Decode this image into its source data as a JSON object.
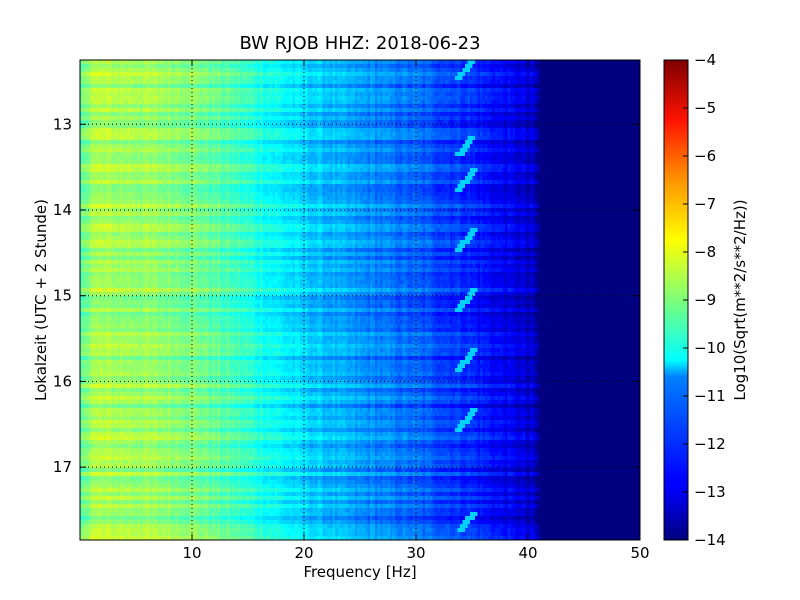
{
  "chart_data": {
    "type": "heatmap",
    "title": "BW RJOB HHZ: 2018-06-23",
    "xlabel": "Frequency [Hz]",
    "ylabel": "Lokalzeit (UTC + 2 Stunde)",
    "colorbar_label": "Log10(Sqrt(m**2/s**2/Hz))",
    "colormap": "jet",
    "xlim": [
      0,
      50
    ],
    "ylim": [
      12.25,
      17.85
    ],
    "y_inverted": true,
    "clim": [
      -14,
      -4
    ],
    "x_ticks": [
      10,
      20,
      30,
      40,
      50
    ],
    "x_tick_labels": [
      "10",
      "20",
      "30",
      "40",
      "50"
    ],
    "y_ticks": [
      13,
      14,
      15,
      16,
      17
    ],
    "y_tick_labels": [
      "13",
      "14",
      "15",
      "16",
      "17"
    ],
    "colorbar_ticks": [
      -4,
      -5,
      -6,
      -7,
      -8,
      -9,
      -10,
      -11,
      -12,
      -13,
      -14
    ],
    "colorbar_tick_labels": [
      "−4",
      "−5",
      "−6",
      "−7",
      "−8",
      "−9",
      "−10",
      "−11",
      "−12",
      "−13",
      "−14"
    ],
    "grid": true,
    "grid_style": "dotted",
    "frequency_profile": {
      "frequency_hz": [
        0,
        1,
        5,
        10,
        15,
        20,
        25,
        30,
        35,
        38,
        40.5,
        41,
        50
      ],
      "log10_amplitude": [
        -9.5,
        -8.6,
        -8.7,
        -9.0,
        -9.8,
        -10.7,
        -11.3,
        -11.8,
        -12.4,
        -12.9,
        -13.3,
        -14,
        -14
      ]
    },
    "tone_feature": {
      "frequency_hz": [
        33.8,
        35.2
      ],
      "recurring_hours": [
        12.35,
        13.25,
        13.65,
        14.35,
        15.05,
        15.75,
        16.45,
        17.65
      ]
    }
  }
}
